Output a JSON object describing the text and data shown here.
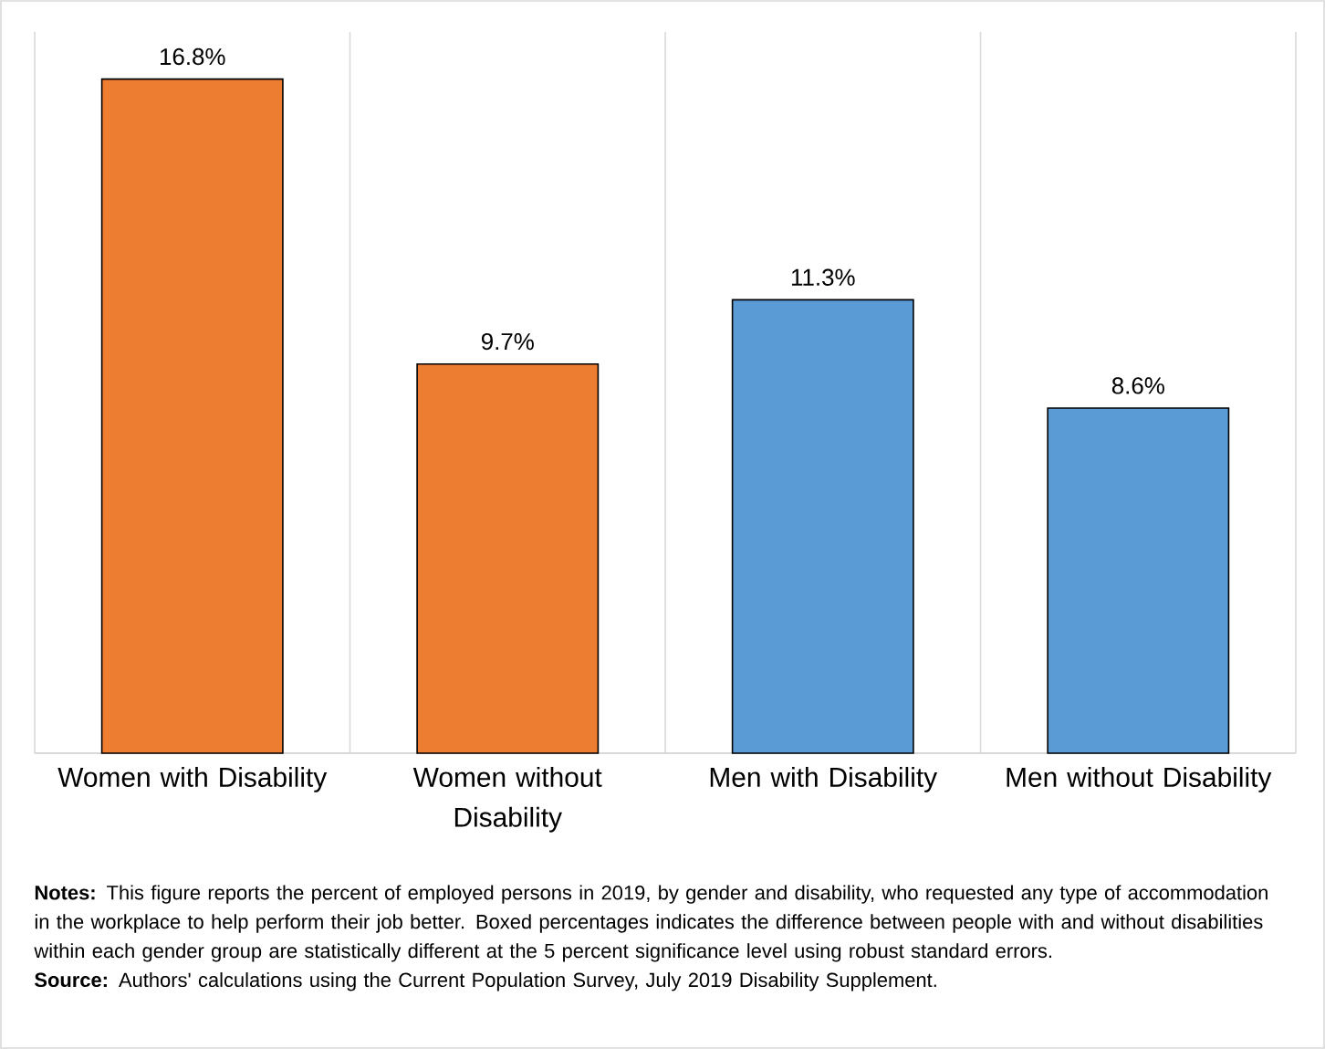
{
  "chart_data": {
    "type": "bar",
    "categories": [
      "Women with Disability",
      "Women without Disability",
      "Men with Disability",
      "Men without Disability"
    ],
    "values": [
      16.8,
      9.7,
      11.3,
      8.6
    ],
    "colors": [
      "#ed7d31",
      "#ed7d31",
      "#5b9bd5",
      "#5b9bd5"
    ],
    "value_labels": [
      "16.8%",
      "9.7%",
      "11.3%",
      "8.6%"
    ],
    "grid": "x",
    "annotations": [
      "**Notes:** This figure reports the percent of employed persons in 2019, by gender and disability, who requested any type of accommodation in the workplace to help perform their job better. Boxed percentages indicates the difference between people with and without disabilities within each gender group are statistically different at the 5 percent significance level using robust standard errors.",
      "**Source:** Authors' calculations using the Current Population Survey, July 2019 Disability Supplement."
    ]
  }
}
